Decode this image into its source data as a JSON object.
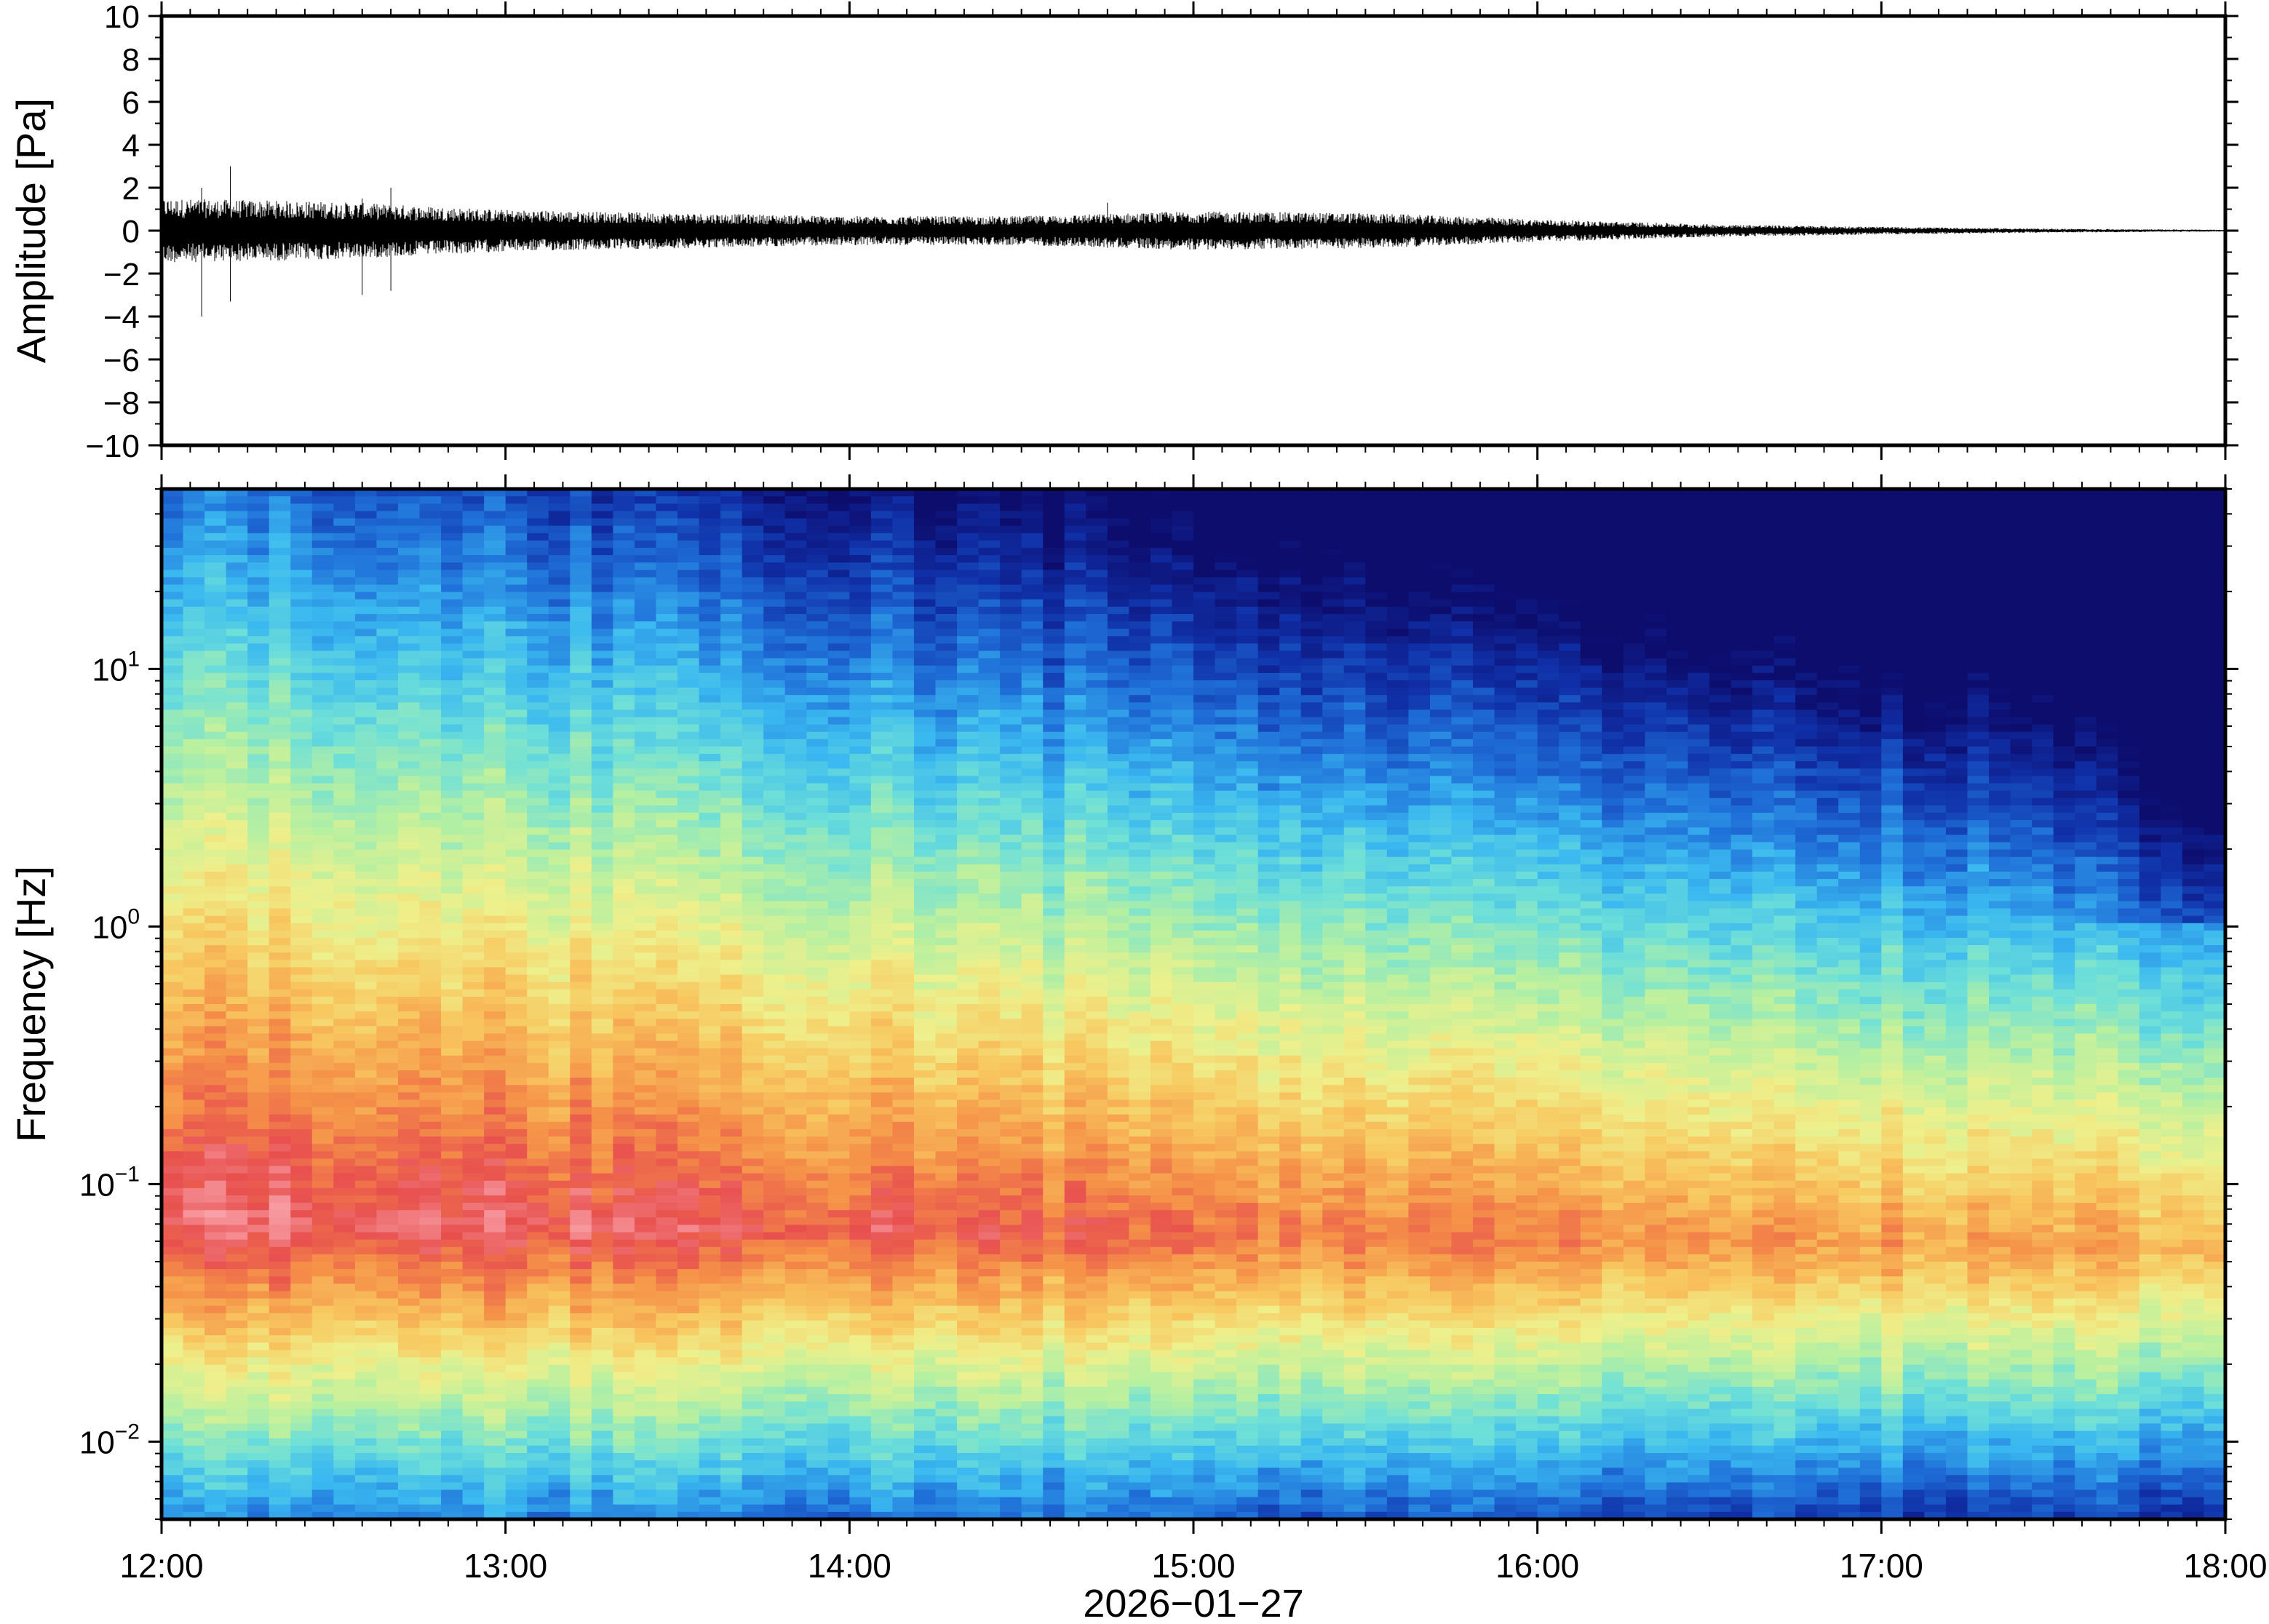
{
  "chart_data": [
    {
      "type": "line",
      "panel": "waveform",
      "ylabel": "Amplitude [Pa]",
      "ylim": [
        -10,
        10
      ],
      "yticks": [
        10,
        8,
        6,
        4,
        2,
        0,
        -2,
        -4,
        -6,
        -8,
        -10
      ],
      "ytick_labels": [
        "10",
        "8",
        "6",
        "4",
        "2",
        "0",
        "−2",
        "−4",
        "−6",
        "−8",
        "−10"
      ],
      "xlim": [
        "12:00",
        "18:00"
      ],
      "envelope": {
        "time": [
          "12:00",
          "12:30",
          "13:00",
          "13:30",
          "14:00",
          "14:30",
          "15:00",
          "15:30",
          "16:00",
          "16:30",
          "17:00",
          "17:30",
          "18:00"
        ],
        "amplitude": [
          1.0,
          0.9,
          0.65,
          0.55,
          0.45,
          0.45,
          0.6,
          0.55,
          0.35,
          0.2,
          0.12,
          0.06,
          0.03
        ]
      },
      "spikes": [
        {
          "time": "12:07",
          "min": -4.0,
          "max": 2.0
        },
        {
          "time": "12:12",
          "min": -3.3,
          "max": 3.0
        },
        {
          "time": "12:35",
          "min": -3.0,
          "max": 1.5
        },
        {
          "time": "12:40",
          "min": -2.8,
          "max": 2.0
        },
        {
          "time": "14:45",
          "min": -0.8,
          "max": 1.3
        }
      ],
      "color": "#000000"
    },
    {
      "type": "heatmap",
      "panel": "spectrogram",
      "ylabel": "Frequency [Hz]",
      "yscale": "log",
      "ylim": [
        0.005,
        50
      ],
      "yticks": [
        {
          "base": "10",
          "exp": "1",
          "value": 10
        },
        {
          "base": "10",
          "exp": "0",
          "value": 1
        },
        {
          "base": "10",
          "exp": "−1",
          "value": 0.1
        },
        {
          "base": "10",
          "exp": "−2",
          "value": 0.01
        }
      ],
      "xlabel": "2026−01−27",
      "xticks": [
        "12:00",
        "13:00",
        "14:00",
        "15:00",
        "16:00",
        "17:00",
        "18:00"
      ],
      "colormap": "rainbow (dark blue = low power, pink = high power)",
      "colormap_stops": [
        "#0d0d6e",
        "#1030a8",
        "#1f6fd8",
        "#3ab8f0",
        "#6ee0d8",
        "#b8f0a0",
        "#eef08c",
        "#f8c860",
        "#f59248",
        "#e8504e",
        "#f8a0a8"
      ],
      "note": "peak power 0.03–0.3 Hz, strongest 12:00–13:30, decaying toward 18:00; high frequencies (>10 Hz) lowest"
    }
  ]
}
